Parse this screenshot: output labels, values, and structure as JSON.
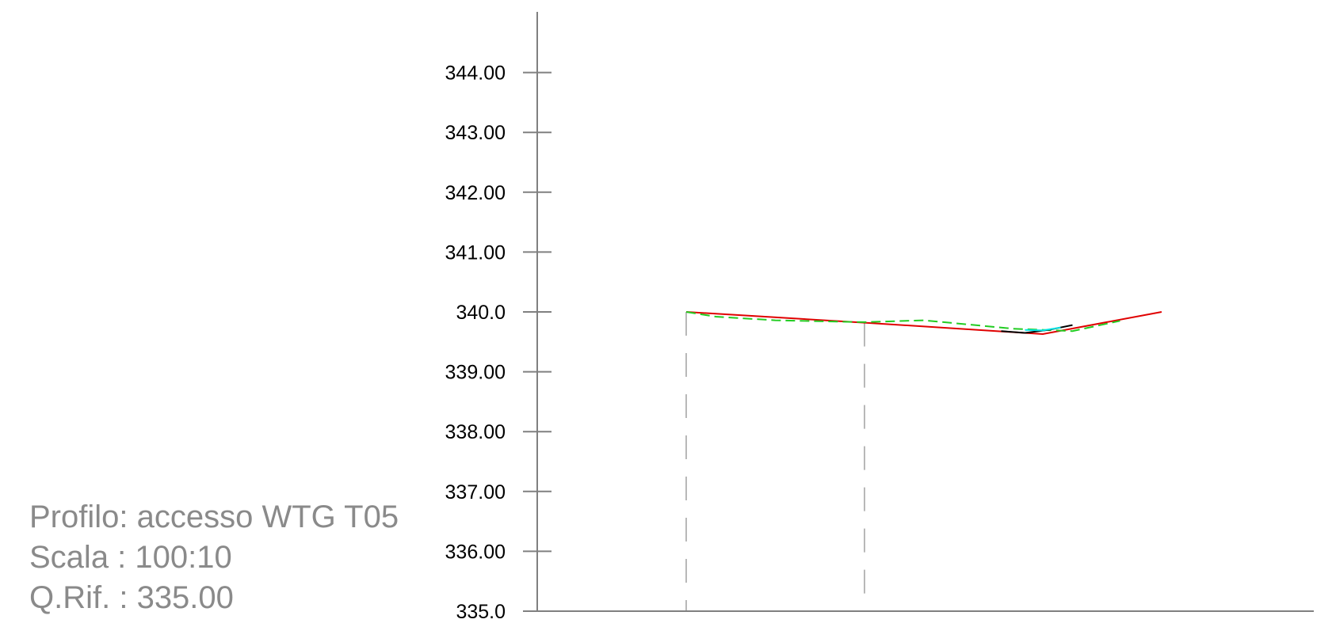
{
  "info": {
    "profile": "Profilo: accesso WTG T05",
    "scale": "Scala : 100:10",
    "reference": "Q.Rif. : 335.00"
  },
  "colors": {
    "axis": "#808080",
    "design_line": "#e00000",
    "terrain_dashed": "#22cc22",
    "terrain_solid": "#000000",
    "terrain_highlight": "#00e5e5",
    "guides": "#a0a0a0",
    "info_text": "#8a8a8a"
  },
  "chart_data": {
    "type": "line",
    "ylim": [
      335.0,
      345.0
    ],
    "xlim": [
      0,
      130
    ],
    "y_tick_labels": [
      {
        "value": 344,
        "label": "344.00"
      },
      {
        "value": 343,
        "label": "343.00"
      },
      {
        "value": 342,
        "label": "342.00"
      },
      {
        "value": 341,
        "label": "341.00"
      },
      {
        "value": 340,
        "label": "340.0"
      },
      {
        "value": 339,
        "label": "339.00"
      },
      {
        "value": 338,
        "label": "338.00"
      },
      {
        "value": 337,
        "label": "337.00"
      },
      {
        "value": 336,
        "label": "336.00"
      },
      {
        "value": 335,
        "label": "335.0"
      }
    ],
    "series": [
      {
        "style": "solid",
        "color": "#e00000",
        "x": [
          0,
          30,
          60,
          80
        ],
        "y": [
          340.0,
          339.82,
          339.63,
          340.0
        ]
      },
      {
        "style": "dashed",
        "color": "#22cc22",
        "x": [
          0,
          5,
          15,
          30,
          40,
          55,
          65,
          73
        ],
        "y": [
          340.0,
          339.92,
          339.86,
          339.83,
          339.86,
          339.72,
          339.68,
          339.85
        ]
      },
      {
        "style": "solid",
        "color": "#000000",
        "x": [
          53,
          57,
          61,
          65
        ],
        "y": [
          339.68,
          339.65,
          339.7,
          339.78
        ]
      },
      {
        "style": "solid",
        "color": "#00e5e5",
        "x": [
          57,
          60,
          63
        ],
        "y": [
          339.7,
          339.69,
          339.74
        ]
      }
    ],
    "vertical_guides": [
      {
        "x": 0,
        "style": "dashed"
      },
      {
        "x": 30,
        "style": "dashed"
      }
    ]
  }
}
